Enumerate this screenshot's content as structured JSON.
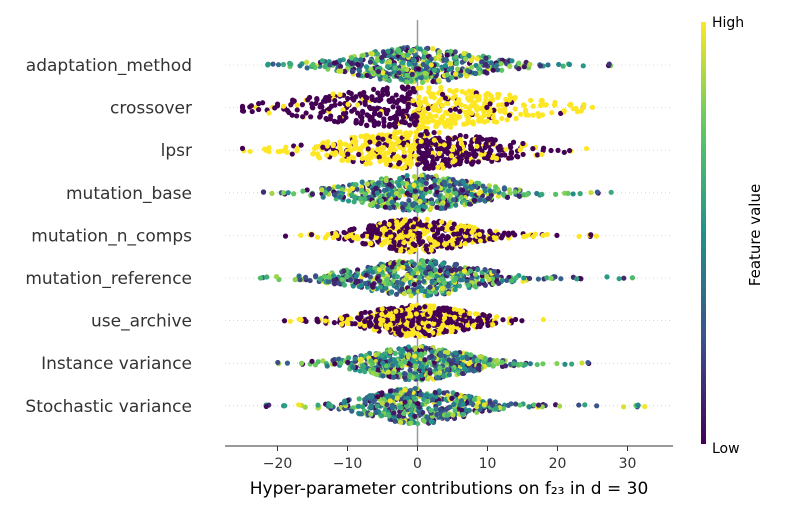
{
  "chart_data": {
    "type": "scatter",
    "subtype": "beeswarm",
    "xlabel": "Hyper-parameter contributions on f₂₃ in d = 30",
    "xlim": [
      -27.5,
      36.5
    ],
    "xticks": [
      -20,
      -10,
      0,
      10,
      20,
      30
    ],
    "xtick_labels": [
      "−20",
      "−10",
      "0",
      "10",
      "20",
      "30"
    ],
    "colorbar": {
      "label": "Feature value",
      "high_label": "High",
      "low_label": "Low",
      "colors": [
        "#440154",
        "#3b528b",
        "#21918c",
        "#5ec962",
        "#fde725"
      ]
    },
    "features": [
      {
        "name": "adaptation_method",
        "min": -21.5,
        "max": 28.0,
        "spread": 7.5,
        "core": 6,
        "height": 34,
        "colors": "mixed"
      },
      {
        "name": "crossover",
        "min": -25.0,
        "max": 25.0,
        "spread": 9.5,
        "core": 10,
        "height": 40,
        "colors": "split"
      },
      {
        "name": "lpsr",
        "min": -25.0,
        "max": 25.5,
        "spread": 8.0,
        "core": 8,
        "height": 36,
        "colors": "split_rev"
      },
      {
        "name": "mutation_base",
        "min": -22.0,
        "max": 29.0,
        "spread": 7.5,
        "core": 6,
        "height": 34,
        "colors": "mixed"
      },
      {
        "name": "mutation_n_comps",
        "min": -20.0,
        "max": 26.0,
        "spread": 6.5,
        "core": 5,
        "height": 32,
        "colors": "purple_yellow"
      },
      {
        "name": "mutation_reference",
        "min": -24.5,
        "max": 33.0,
        "spread": 8.0,
        "core": 6,
        "height": 34,
        "colors": "mixed"
      },
      {
        "name": "use_archive",
        "min": -19.0,
        "max": 19.0,
        "spread": 6.0,
        "core": 5,
        "height": 30,
        "colors": "purple_yellow"
      },
      {
        "name": "Instance variance",
        "min": -21.0,
        "max": 27.5,
        "spread": 6.5,
        "core": 5,
        "height": 32,
        "colors": "mixed"
      },
      {
        "name": "Stochastic variance",
        "min": -23.0,
        "max": 33.0,
        "spread": 7.0,
        "core": 5,
        "height": 34,
        "colors": "mixed"
      }
    ]
  }
}
